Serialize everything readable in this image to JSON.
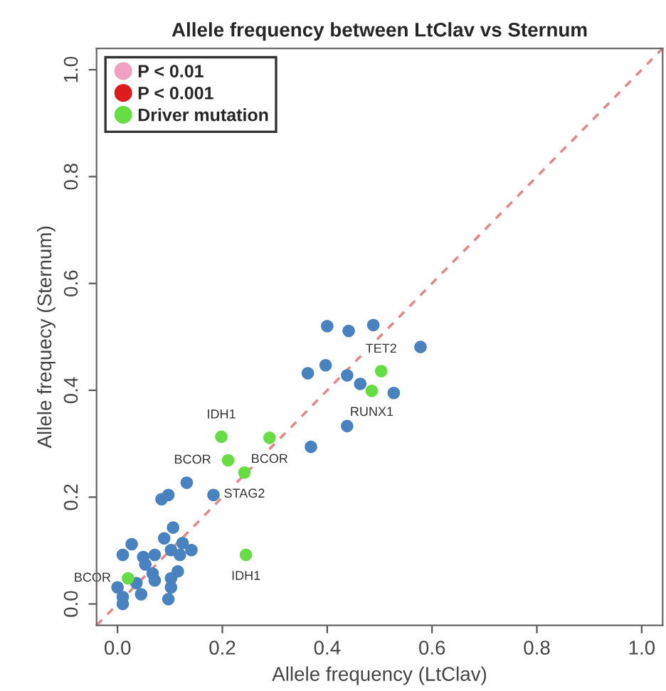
{
  "chart_data": {
    "type": "scatter",
    "title": "Allele frequency between LtClav vs Sternum",
    "xlabel": "Allele frequency (LtClav)",
    "ylabel": "Allele frequecy (Sternum)",
    "xlim": [
      -0.04,
      1.04
    ],
    "ylim": [
      -0.04,
      1.04
    ],
    "xticks": [
      {
        "value": 0,
        "label": "0.0"
      },
      0.2,
      0.4,
      0.6,
      0.8,
      {
        "value": 1,
        "label": "1.0"
      }
    ],
    "yticks": [
      {
        "value": 0,
        "label": "0.0"
      },
      0.2,
      0.4,
      0.6,
      0.8,
      {
        "value": 1,
        "label": "1.0"
      }
    ],
    "grid": false,
    "legend": "top left",
    "marker": "circle",
    "series": [
      {
        "type": "line",
        "color": "#e08a8a",
        "line_style": "dashed",
        "marker": "none",
        "x": [
          -0.04,
          1.04
        ],
        "values": [
          -0.04,
          1.04
        ]
      },
      {
        "color": "#4a82c0",
        "x": [
          0.4,
          0.363,
          0.397,
          0.369,
          0.132,
          0.097,
          0.084,
          0.183,
          0.106,
          0.027,
          0.01,
          0.049,
          0.071,
          0.089,
          0.102,
          0.124,
          0.141,
          0.119,
          0.053,
          0.067,
          0.115,
          0.102,
          0.071,
          0.036,
          0.045,
          0.01,
          0.097,
          0.01,
          0.0,
          0.102,
          0.441,
          0.488,
          0.578,
          0.438,
          0.463,
          0.527,
          0.438
        ],
        "values": [
          0.52,
          0.432,
          0.447,
          0.294,
          0.227,
          0.204,
          0.196,
          0.204,
          0.143,
          0.112,
          0.092,
          0.088,
          0.092,
          0.123,
          0.101,
          0.114,
          0.101,
          0.092,
          0.074,
          0.057,
          0.061,
          0.048,
          0.044,
          0.039,
          0.018,
          0.013,
          0.009,
          0.0,
          0.031,
          0.031,
          0.511,
          0.522,
          0.481,
          0.428,
          0.412,
          0.395,
          0.333
        ]
      },
      {
        "name": "P < 0.01",
        "color": "#f0a0c0"
      },
      {
        "name": "P < 0.001",
        "color": "#dd1c1c"
      },
      {
        "name": "Driver mutation",
        "color": "#66dd44",
        "x": [
          0.198,
          0.29,
          0.211,
          0.242,
          0.245,
          0.503,
          0.485,
          0.02
        ],
        "values": [
          0.313,
          0.311,
          0.269,
          0.246,
          0.092,
          0.436,
          0.399,
          0.048
        ]
      }
    ],
    "annotations": [
      {
        "text": "IDH1",
        "x": 0.198,
        "y": 0.313
      },
      {
        "text": "BCOR",
        "x": 0.29,
        "y": 0.311
      },
      {
        "text": "BCOR",
        "x": 0.211,
        "y": 0.269
      },
      {
        "text": "STAG2",
        "x": 0.242,
        "y": 0.246
      },
      {
        "text": "IDH1",
        "x": 0.245,
        "y": 0.092
      },
      {
        "text": "TET2",
        "x": 0.503,
        "y": 0.436
      },
      {
        "text": "RUNX1",
        "x": 0.485,
        "y": 0.399
      },
      {
        "text": "BCOR",
        "x": 0.02,
        "y": 0.048
      }
    ]
  }
}
